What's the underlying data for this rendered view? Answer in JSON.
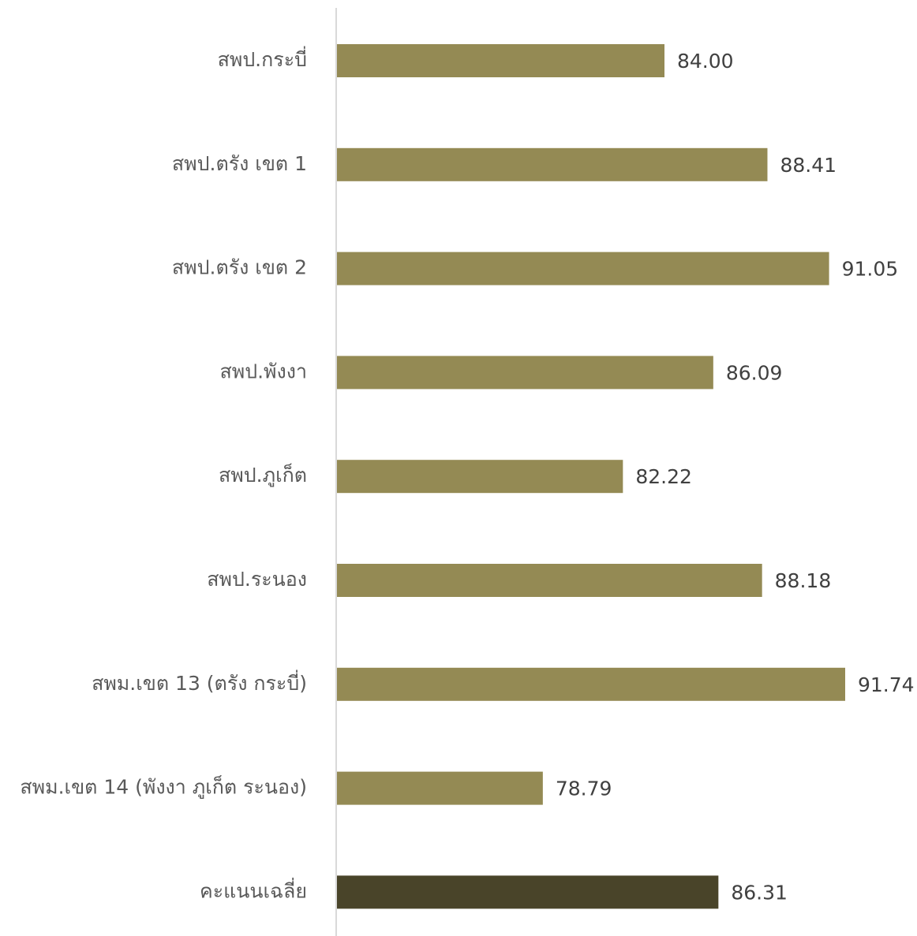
{
  "chart_data": {
    "type": "bar",
    "orientation": "horizontal",
    "categories": [
      "สพป.กระบี่",
      "สพป.ตรัง เขต 1",
      "สพป.ตรัง เขต 2",
      "สพป.พังงา",
      "สพป.ภูเก็ต",
      "สพป.ระนอง",
      "สพม.เขต 13 (ตรัง กระบี่)",
      "สพม.เขต 14 (พังงา ภูเก็ต ระนอง)",
      "คะแนนเฉลี่ย"
    ],
    "values": [
      84.0,
      88.41,
      91.05,
      86.09,
      82.22,
      88.18,
      91.74,
      78.79,
      86.31
    ],
    "value_labels": [
      "84.00",
      "88.41",
      "91.05",
      "86.09",
      "82.22",
      "88.18",
      "91.74",
      "78.79",
      "86.31"
    ],
    "xlim": [
      70,
      92
    ],
    "title": "",
    "xlabel": "",
    "ylabel": "",
    "grid": false,
    "legend": "none",
    "colors": {
      "bar": "#948a54",
      "average_bar": "#494429",
      "axis": "#d9d9d9",
      "category_text": "#595959",
      "value_text": "#404040"
    }
  }
}
